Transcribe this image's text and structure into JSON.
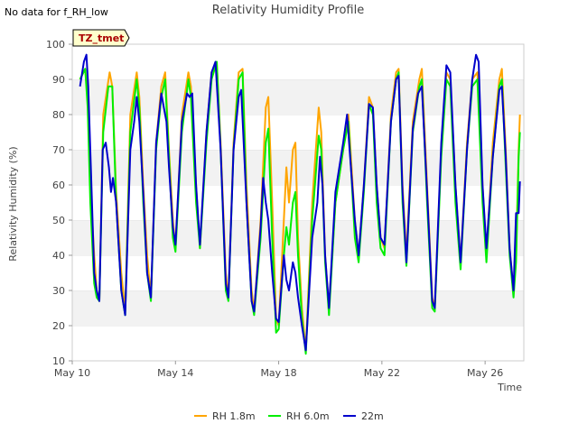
{
  "note": "No data for f_RH_low",
  "chart_data": {
    "type": "line",
    "title": "Relativity Humidity Profile",
    "xlabel": "Time",
    "ylabel": "Relativity Humidity (%)",
    "site_label": "TZ_tmet",
    "ylim": [
      10,
      100
    ],
    "yticks": [
      10,
      20,
      30,
      40,
      50,
      60,
      70,
      80,
      90,
      100
    ],
    "xlim_days": [
      10,
      27.5
    ],
    "xticks": [
      {
        "label": "May 10",
        "day": 10
      },
      {
        "label": "May 14",
        "day": 14
      },
      {
        "label": "May 18",
        "day": 18
      },
      {
        "label": "May 22",
        "day": 22
      },
      {
        "label": "May 26",
        "day": 26
      }
    ],
    "grid": "horizontal bands",
    "legend_position": "bottom",
    "series": [
      {
        "name": "RH 1.8m",
        "color": "#FFA500",
        "points": [
          [
            10.3,
            90
          ],
          [
            10.5,
            93
          ],
          [
            10.6,
            85
          ],
          [
            10.7,
            60
          ],
          [
            10.85,
            40
          ],
          [
            10.95,
            30
          ],
          [
            11.05,
            27
          ],
          [
            11.2,
            80
          ],
          [
            11.45,
            92
          ],
          [
            11.55,
            88
          ],
          [
            11.7,
            58
          ],
          [
            11.9,
            35
          ],
          [
            12.05,
            24
          ],
          [
            12.25,
            80
          ],
          [
            12.5,
            92
          ],
          [
            12.6,
            85
          ],
          [
            12.75,
            60
          ],
          [
            12.9,
            40
          ],
          [
            13.05,
            28
          ],
          [
            13.25,
            72
          ],
          [
            13.45,
            88
          ],
          [
            13.6,
            92
          ],
          [
            13.75,
            70
          ],
          [
            13.9,
            50
          ],
          [
            14.0,
            42
          ],
          [
            14.25,
            80
          ],
          [
            14.5,
            92
          ],
          [
            14.6,
            88
          ],
          [
            14.8,
            60
          ],
          [
            14.95,
            42
          ],
          [
            15.2,
            75
          ],
          [
            15.4,
            92
          ],
          [
            15.6,
            95
          ],
          [
            15.75,
            72
          ],
          [
            15.95,
            35
          ],
          [
            16.05,
            28
          ],
          [
            16.25,
            72
          ],
          [
            16.45,
            92
          ],
          [
            16.6,
            93
          ],
          [
            16.75,
            60
          ],
          [
            16.95,
            30
          ],
          [
            17.05,
            24
          ],
          [
            17.3,
            50
          ],
          [
            17.5,
            82
          ],
          [
            17.6,
            85
          ],
          [
            17.75,
            55
          ],
          [
            17.9,
            22
          ],
          [
            18.0,
            20
          ],
          [
            18.2,
            50
          ],
          [
            18.3,
            65
          ],
          [
            18.4,
            55
          ],
          [
            18.55,
            70
          ],
          [
            18.65,
            72
          ],
          [
            18.75,
            45
          ],
          [
            18.9,
            25
          ],
          [
            19.05,
            13
          ],
          [
            19.3,
            55
          ],
          [
            19.55,
            82
          ],
          [
            19.65,
            75
          ],
          [
            19.8,
            40
          ],
          [
            19.95,
            25
          ],
          [
            20.2,
            55
          ],
          [
            20.5,
            70
          ],
          [
            20.7,
            80
          ],
          [
            20.8,
            68
          ],
          [
            20.95,
            50
          ],
          [
            21.1,
            40
          ],
          [
            21.3,
            60
          ],
          [
            21.5,
            85
          ],
          [
            21.65,
            82
          ],
          [
            21.8,
            60
          ],
          [
            21.95,
            45
          ],
          [
            22.1,
            42
          ],
          [
            22.35,
            80
          ],
          [
            22.55,
            92
          ],
          [
            22.65,
            93
          ],
          [
            22.8,
            60
          ],
          [
            22.95,
            40
          ],
          [
            23.2,
            78
          ],
          [
            23.45,
            90
          ],
          [
            23.55,
            93
          ],
          [
            23.75,
            60
          ],
          [
            23.95,
            28
          ],
          [
            24.05,
            25
          ],
          [
            24.3,
            70
          ],
          [
            24.5,
            92
          ],
          [
            24.65,
            90
          ],
          [
            24.85,
            60
          ],
          [
            25.05,
            38
          ],
          [
            25.3,
            72
          ],
          [
            25.5,
            90
          ],
          [
            25.7,
            92
          ],
          [
            25.9,
            60
          ],
          [
            26.05,
            40
          ],
          [
            26.3,
            72
          ],
          [
            26.55,
            90
          ],
          [
            26.65,
            93
          ],
          [
            26.8,
            70
          ],
          [
            26.95,
            42
          ],
          [
            27.1,
            30
          ],
          [
            27.2,
            40
          ],
          [
            27.3,
            70
          ],
          [
            27.35,
            80
          ]
        ]
      },
      {
        "name": "RH 6.0m",
        "color": "#00EE00",
        "points": [
          [
            10.3,
            90
          ],
          [
            10.5,
            93
          ],
          [
            10.6,
            82
          ],
          [
            10.7,
            55
          ],
          [
            10.85,
            32
          ],
          [
            10.95,
            28
          ],
          [
            11.05,
            27
          ],
          [
            11.2,
            75
          ],
          [
            11.4,
            88
          ],
          [
            11.55,
            88
          ],
          [
            11.7,
            55
          ],
          [
            11.9,
            30
          ],
          [
            12.05,
            23
          ],
          [
            12.25,
            75
          ],
          [
            12.5,
            90
          ],
          [
            12.6,
            82
          ],
          [
            12.75,
            55
          ],
          [
            12.9,
            35
          ],
          [
            13.05,
            27
          ],
          [
            13.25,
            70
          ],
          [
            13.45,
            85
          ],
          [
            13.6,
            90
          ],
          [
            13.75,
            68
          ],
          [
            13.9,
            45
          ],
          [
            14.0,
            41
          ],
          [
            14.25,
            75
          ],
          [
            14.5,
            90
          ],
          [
            14.6,
            85
          ],
          [
            14.8,
            55
          ],
          [
            14.95,
            42
          ],
          [
            15.2,
            72
          ],
          [
            15.4,
            90
          ],
          [
            15.6,
            95
          ],
          [
            15.75,
            70
          ],
          [
            15.95,
            30
          ],
          [
            16.05,
            27
          ],
          [
            16.25,
            70
          ],
          [
            16.45,
            90
          ],
          [
            16.6,
            92
          ],
          [
            16.75,
            55
          ],
          [
            16.95,
            27
          ],
          [
            17.05,
            23
          ],
          [
            17.3,
            45
          ],
          [
            17.5,
            72
          ],
          [
            17.6,
            76
          ],
          [
            17.75,
            45
          ],
          [
            17.9,
            18
          ],
          [
            18.0,
            19
          ],
          [
            18.2,
            40
          ],
          [
            18.3,
            48
          ],
          [
            18.4,
            43
          ],
          [
            18.55,
            55
          ],
          [
            18.65,
            58
          ],
          [
            18.75,
            40
          ],
          [
            18.9,
            22
          ],
          [
            19.05,
            12
          ],
          [
            19.3,
            50
          ],
          [
            19.55,
            74
          ],
          [
            19.65,
            70
          ],
          [
            19.8,
            38
          ],
          [
            19.95,
            23
          ],
          [
            20.2,
            55
          ],
          [
            20.5,
            70
          ],
          [
            20.7,
            78
          ],
          [
            20.8,
            65
          ],
          [
            20.95,
            45
          ],
          [
            21.1,
            38
          ],
          [
            21.3,
            58
          ],
          [
            21.5,
            83
          ],
          [
            21.65,
            80
          ],
          [
            21.8,
            55
          ],
          [
            21.95,
            42
          ],
          [
            22.1,
            40
          ],
          [
            22.35,
            78
          ],
          [
            22.55,
            90
          ],
          [
            22.65,
            92
          ],
          [
            22.8,
            55
          ],
          [
            22.95,
            37
          ],
          [
            23.2,
            75
          ],
          [
            23.45,
            88
          ],
          [
            23.55,
            90
          ],
          [
            23.75,
            55
          ],
          [
            23.95,
            25
          ],
          [
            24.05,
            24
          ],
          [
            24.3,
            68
          ],
          [
            24.5,
            90
          ],
          [
            24.65,
            88
          ],
          [
            24.85,
            55
          ],
          [
            25.05,
            36
          ],
          [
            25.3,
            70
          ],
          [
            25.5,
            88
          ],
          [
            25.7,
            90
          ],
          [
            25.9,
            55
          ],
          [
            26.05,
            38
          ],
          [
            26.3,
            68
          ],
          [
            26.55,
            88
          ],
          [
            26.65,
            90
          ],
          [
            26.8,
            65
          ],
          [
            26.95,
            40
          ],
          [
            27.1,
            28
          ],
          [
            27.2,
            38
          ],
          [
            27.3,
            68
          ],
          [
            27.35,
            75
          ]
        ]
      },
      {
        "name": "22m",
        "color": "#0000CC",
        "points": [
          [
            10.3,
            88
          ],
          [
            10.45,
            95
          ],
          [
            10.55,
            97
          ],
          [
            10.62,
            88
          ],
          [
            10.72,
            65
          ],
          [
            10.85,
            35
          ],
          [
            10.95,
            30
          ],
          [
            11.05,
            27
          ],
          [
            11.18,
            70
          ],
          [
            11.3,
            72
          ],
          [
            11.42,
            65
          ],
          [
            11.5,
            58
          ],
          [
            11.58,
            62
          ],
          [
            11.7,
            55
          ],
          [
            11.9,
            30
          ],
          [
            12.05,
            23
          ],
          [
            12.25,
            70
          ],
          [
            12.4,
            78
          ],
          [
            12.5,
            85
          ],
          [
            12.6,
            78
          ],
          [
            12.75,
            58
          ],
          [
            12.9,
            35
          ],
          [
            13.05,
            28
          ],
          [
            13.25,
            72
          ],
          [
            13.45,
            86
          ],
          [
            13.55,
            82
          ],
          [
            13.65,
            78
          ],
          [
            13.75,
            65
          ],
          [
            13.9,
            48
          ],
          [
            14.0,
            43
          ],
          [
            14.25,
            78
          ],
          [
            14.45,
            86
          ],
          [
            14.55,
            85
          ],
          [
            14.65,
            86
          ],
          [
            14.8,
            60
          ],
          [
            14.95,
            43
          ],
          [
            15.2,
            75
          ],
          [
            15.4,
            92
          ],
          [
            15.55,
            95
          ],
          [
            15.75,
            70
          ],
          [
            15.95,
            32
          ],
          [
            16.05,
            28
          ],
          [
            16.25,
            70
          ],
          [
            16.45,
            85
          ],
          [
            16.55,
            87
          ],
          [
            16.75,
            55
          ],
          [
            16.95,
            27
          ],
          [
            17.05,
            24
          ],
          [
            17.3,
            48
          ],
          [
            17.4,
            62
          ],
          [
            17.5,
            55
          ],
          [
            17.6,
            50
          ],
          [
            17.75,
            35
          ],
          [
            17.9,
            22
          ],
          [
            18.0,
            21
          ],
          [
            18.2,
            40
          ],
          [
            18.3,
            33
          ],
          [
            18.4,
            30
          ],
          [
            18.55,
            38
          ],
          [
            18.65,
            35
          ],
          [
            18.75,
            28
          ],
          [
            18.9,
            20
          ],
          [
            19.05,
            13
          ],
          [
            19.3,
            45
          ],
          [
            19.5,
            55
          ],
          [
            19.6,
            68
          ],
          [
            19.7,
            60
          ],
          [
            19.8,
            40
          ],
          [
            19.95,
            25
          ],
          [
            20.2,
            58
          ],
          [
            20.5,
            72
          ],
          [
            20.65,
            80
          ],
          [
            20.75,
            70
          ],
          [
            20.95,
            50
          ],
          [
            21.1,
            40
          ],
          [
            21.3,
            60
          ],
          [
            21.5,
            83
          ],
          [
            21.65,
            82
          ],
          [
            21.8,
            60
          ],
          [
            21.95,
            45
          ],
          [
            22.1,
            43
          ],
          [
            22.35,
            78
          ],
          [
            22.55,
            90
          ],
          [
            22.65,
            91
          ],
          [
            22.8,
            58
          ],
          [
            22.95,
            38
          ],
          [
            23.2,
            76
          ],
          [
            23.4,
            86
          ],
          [
            23.55,
            88
          ],
          [
            23.75,
            58
          ],
          [
            23.95,
            27
          ],
          [
            24.05,
            25
          ],
          [
            24.3,
            72
          ],
          [
            24.5,
            94
          ],
          [
            24.65,
            92
          ],
          [
            24.85,
            60
          ],
          [
            25.05,
            38
          ],
          [
            25.3,
            70
          ],
          [
            25.5,
            90
          ],
          [
            25.65,
            97
          ],
          [
            25.75,
            95
          ],
          [
            25.9,
            60
          ],
          [
            26.05,
            42
          ],
          [
            26.3,
            68
          ],
          [
            26.55,
            87
          ],
          [
            26.65,
            88
          ],
          [
            26.8,
            68
          ],
          [
            26.95,
            42
          ],
          [
            27.1,
            30
          ],
          [
            27.2,
            52
          ],
          [
            27.3,
            52
          ],
          [
            27.35,
            61
          ]
        ]
      }
    ]
  }
}
